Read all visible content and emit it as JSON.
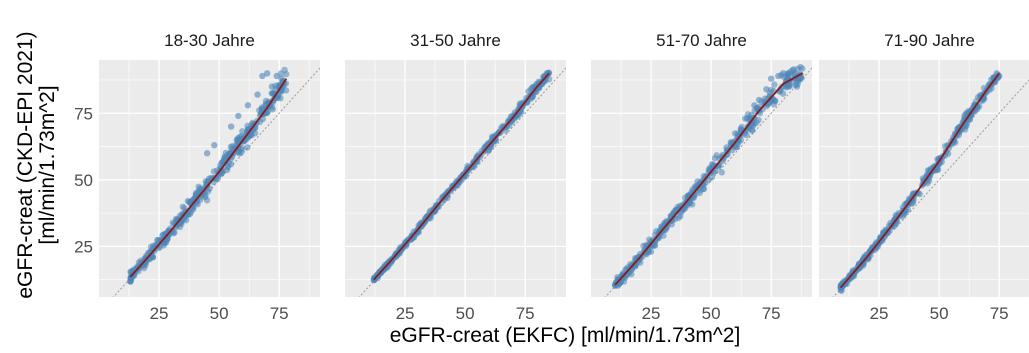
{
  "chart_data": {
    "type": "scatter",
    "facet_variable": "Altersgruppe",
    "xlabel": "eGFR-creat (EKFC) [ml/min/1.73m^2]",
    "ylabel": [
      "eGFR-creat (CKD-EPI 2021)",
      "[ml/min/1.73m^2]"
    ],
    "x_ticks": [
      25,
      50,
      75
    ],
    "y_ticks": [
      25,
      50,
      75
    ],
    "xlim": [
      0,
      92
    ],
    "ylim": [
      6,
      95
    ],
    "grid": true,
    "reference_line": "y = x",
    "colors": {
      "points": "#4f86b8",
      "fit_line": "#8b1a1a",
      "reference_line": "#9a9a9a",
      "panel_background": "#ebebeb",
      "grid": "#ffffff"
    },
    "panels": [
      {
        "title": "18-30 Jahre",
        "fit_curve": [
          [
            13,
            13.5
          ],
          [
            20,
            20.5
          ],
          [
            30,
            31
          ],
          [
            40,
            42
          ],
          [
            50,
            53
          ],
          [
            60,
            65
          ],
          [
            70,
            77
          ],
          [
            78,
            88
          ]
        ],
        "spread": 2.2,
        "outliers": [
          [
            68,
            89
          ],
          [
            70,
            90
          ],
          [
            74,
            89
          ],
          [
            76,
            88
          ],
          [
            77,
            86
          ],
          [
            55,
            70
          ],
          [
            58,
            74
          ],
          [
            62,
            78
          ],
          [
            45,
            60
          ],
          [
            48,
            63
          ],
          [
            66,
            82
          ],
          [
            72,
            85
          ]
        ]
      },
      {
        "title": "31-50 Jahre",
        "fit_curve": [
          [
            12,
            12.5
          ],
          [
            20,
            20.5
          ],
          [
            30,
            31
          ],
          [
            40,
            42
          ],
          [
            50,
            52.5
          ],
          [
            60,
            63
          ],
          [
            70,
            73.5
          ],
          [
            80,
            85
          ],
          [
            85,
            90
          ]
        ],
        "spread": 0.9,
        "outliers": [
          [
            84,
            90
          ],
          [
            83,
            89
          ],
          [
            82,
            86
          ]
        ]
      },
      {
        "title": "51-70 Jahre",
        "fit_curve": [
          [
            10,
            10.5
          ],
          [
            20,
            20.5
          ],
          [
            30,
            31.5
          ],
          [
            40,
            42
          ],
          [
            50,
            53
          ],
          [
            60,
            64
          ],
          [
            70,
            76
          ],
          [
            80,
            86
          ],
          [
            88,
            90
          ]
        ],
        "spread": 2.0,
        "outliers": [
          [
            75,
            88
          ],
          [
            78,
            89
          ],
          [
            80,
            90
          ],
          [
            82,
            90
          ],
          [
            85,
            90
          ],
          [
            70,
            80
          ],
          [
            73,
            84
          ],
          [
            65,
            73
          ],
          [
            68,
            78
          ]
        ]
      },
      {
        "title": "71-90 Jahre",
        "fit_curve": [
          [
            9,
            9.5
          ],
          [
            20,
            21
          ],
          [
            30,
            32.5
          ],
          [
            40,
            44.5
          ],
          [
            50,
            57
          ],
          [
            60,
            71
          ],
          [
            70,
            84
          ],
          [
            75,
            90
          ]
        ],
        "spread": 1.3,
        "outliers": [
          [
            74,
            90
          ],
          [
            75,
            89
          ],
          [
            73,
            88
          ],
          [
            72,
            86
          ]
        ]
      }
    ]
  }
}
